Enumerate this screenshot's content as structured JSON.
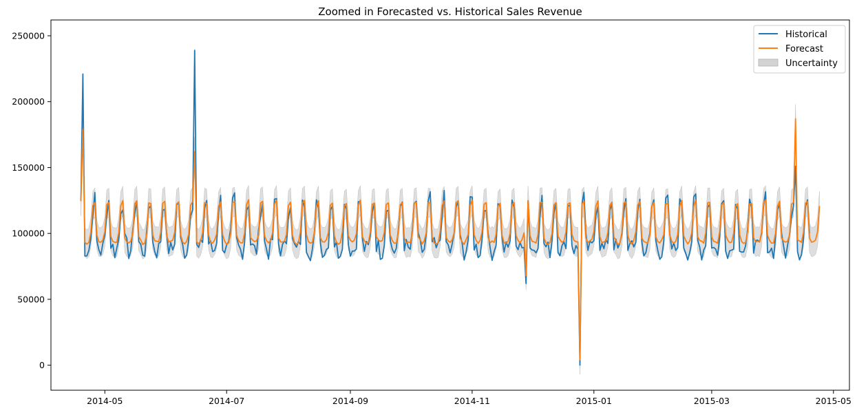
{
  "chart_data": {
    "type": "line",
    "title": "Zoomed in Forecasted vs. Historical Sales Revenue",
    "xlabel": "",
    "ylabel": "",
    "x_start": "2014-04-19",
    "x_end": "2015-04-24",
    "xlim": [
      "2014-04-04",
      "2015-05-09"
    ],
    "ylim": [
      -19000,
      262000
    ],
    "grid": false,
    "legend_position": "top-right",
    "x_ticks": [
      {
        "date": "2014-05-01",
        "label": "2014-05"
      },
      {
        "date": "2014-07-01",
        "label": "2014-07"
      },
      {
        "date": "2014-09-01",
        "label": "2014-09"
      },
      {
        "date": "2014-11-01",
        "label": "2014-11"
      },
      {
        "date": "2015-01-01",
        "label": "2015-01"
      },
      {
        "date": "2015-03-01",
        "label": "2015-03"
      },
      {
        "date": "2015-05-01",
        "label": "2015-05"
      }
    ],
    "y_ticks": [
      {
        "value": 0,
        "label": "0"
      },
      {
        "value": 50000,
        "label": "50000"
      },
      {
        "value": 100000,
        "label": "100000"
      },
      {
        "value": 150000,
        "label": "150000"
      },
      {
        "value": 200000,
        "label": "200000"
      },
      {
        "value": 250000,
        "label": "250000"
      }
    ],
    "series": [
      {
        "name": "Historical",
        "color": "#1f77b4",
        "kind": "line",
        "start": "2014-04-19",
        "end": "2015-04-19",
        "weekly_pattern": [
          125000,
          93000,
          89000,
          87000,
          88000,
          96000,
          120000
        ],
        "spikes": [
          {
            "date": "2014-04-20",
            "value": 221000
          },
          {
            "date": "2014-06-15",
            "value": 239000
          },
          {
            "date": "2014-11-28",
            "value": 62000
          },
          {
            "date": "2014-12-25",
            "value": 0
          },
          {
            "date": "2015-04-12",
            "value": 151000
          }
        ]
      },
      {
        "name": "Forecast",
        "color": "#ff7f0e",
        "kind": "line",
        "start": "2014-04-19",
        "end": "2015-04-24",
        "weekly_pattern": [
          124000,
          98000,
          94000,
          93000,
          94000,
          100000,
          122000
        ],
        "spikes": [
          {
            "date": "2014-04-20",
            "value": 179000
          },
          {
            "date": "2014-06-15",
            "value": 162000
          },
          {
            "date": "2014-11-28",
            "value": 68000
          },
          {
            "date": "2014-12-25",
            "value": 4000
          },
          {
            "date": "2015-04-12",
            "value": 187000
          }
        ]
      },
      {
        "name": "Uncertainty",
        "color": "#d3d3d3",
        "kind": "band",
        "start": "2014-04-19",
        "end": "2015-04-24",
        "band_halfwidth": 11000
      }
    ]
  }
}
